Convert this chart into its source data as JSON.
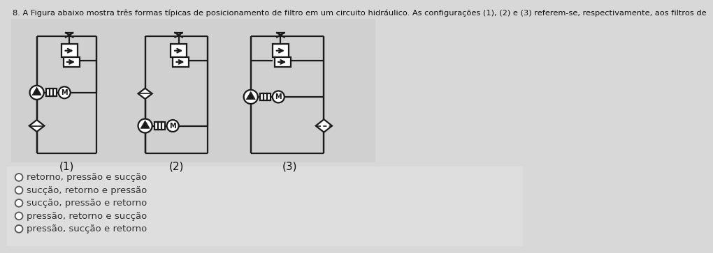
{
  "title": "8. A Figura abaixo mostra três formas típicas de posicionamento de filtro em um circuito hidráulico. As configurações (1), (2) e (3) referem-se, respectivamente, aos filtros de",
  "title_fontsize": 8.2,
  "bg_color": "#d8d8d8",
  "diagram_bg": "#d4d4d4",
  "options_bg": "#e0e0e0",
  "diagram_labels": [
    "(1)",
    "(2)",
    "(3)"
  ],
  "options": [
    "retorno, pressão e sucção",
    "sucção, retorno e pressão",
    "sucção, pressão e retorno",
    "pressão, retorno e sucção",
    "pressão, sucção e retorno"
  ],
  "line_color": "#1a1a1a",
  "lw": 1.6
}
